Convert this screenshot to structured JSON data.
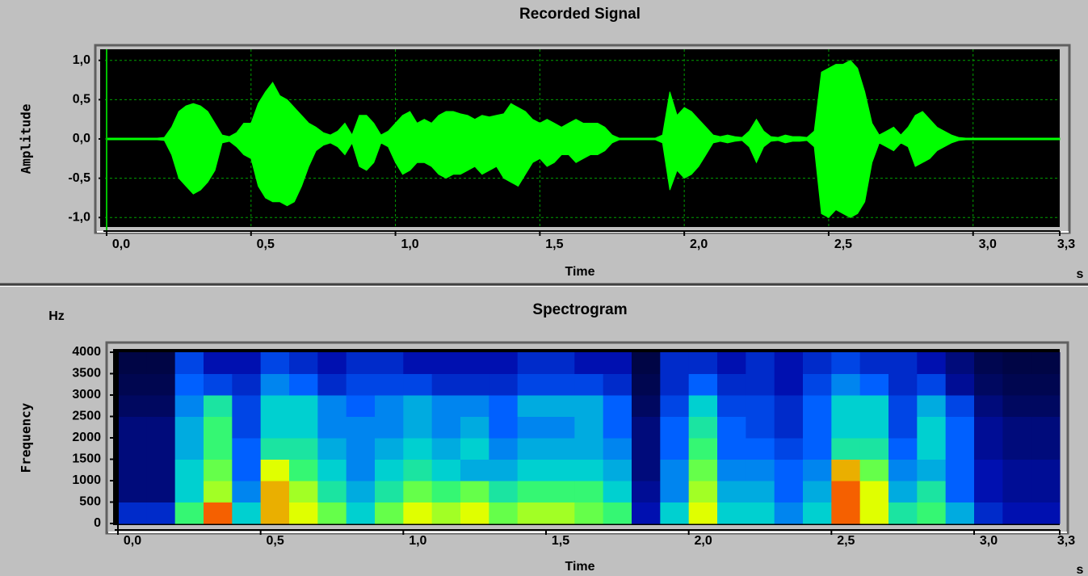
{
  "chart_data": [
    {
      "type": "waveform",
      "title": "Recorded Signal",
      "xlabel": "Time",
      "x_unit": "s",
      "ylabel": "Amplitude",
      "color": "#00ff00",
      "grid": true,
      "grid_color": "#00a000",
      "xlim": [
        0,
        3.3
      ],
      "ylim": [
        -1.1,
        1.1
      ],
      "xticks": [
        {
          "value": 0,
          "label": "0,0"
        },
        {
          "value": 0.5,
          "label": "0,5"
        },
        {
          "value": 1,
          "label": "1,0"
        },
        {
          "value": 1.5,
          "label": "1,5"
        },
        {
          "value": 2,
          "label": "2,0"
        },
        {
          "value": 2.5,
          "label": "2,5"
        },
        {
          "value": 3,
          "label": "3,0"
        },
        {
          "value": 3.3,
          "label": "3,3"
        }
      ],
      "yticks": [
        {
          "value": 1,
          "label": "1,0"
        },
        {
          "value": 0.5,
          "label": "0,5"
        },
        {
          "value": 0,
          "label": "0,0"
        },
        {
          "value": -0.5,
          "label": "-0,5"
        },
        {
          "value": -1,
          "label": "-1,0"
        }
      ],
      "x": [
        0,
        0.025,
        0.05,
        0.075,
        0.1,
        0.125,
        0.15,
        0.175,
        0.2,
        0.225,
        0.25,
        0.275,
        0.3,
        0.325,
        0.35,
        0.375,
        0.4,
        0.425,
        0.45,
        0.475,
        0.5,
        0.525,
        0.55,
        0.575,
        0.6,
        0.625,
        0.65,
        0.675,
        0.7,
        0.725,
        0.75,
        0.775,
        0.8,
        0.825,
        0.85,
        0.875,
        0.9,
        0.925,
        0.95,
        0.975,
        1,
        1.025,
        1.05,
        1.075,
        1.1,
        1.125,
        1.15,
        1.175,
        1.2,
        1.225,
        1.25,
        1.275,
        1.3,
        1.325,
        1.35,
        1.375,
        1.4,
        1.425,
        1.45,
        1.475,
        1.5,
        1.525,
        1.55,
        1.575,
        1.6,
        1.625,
        1.65,
        1.675,
        1.7,
        1.725,
        1.75,
        1.775,
        1.8,
        1.825,
        1.85,
        1.875,
        1.9,
        1.925,
        1.95,
        1.975,
        2,
        2.025,
        2.05,
        2.075,
        2.1,
        2.125,
        2.15,
        2.175,
        2.2,
        2.225,
        2.25,
        2.275,
        2.3,
        2.325,
        2.35,
        2.375,
        2.4,
        2.425,
        2.45,
        2.475,
        2.5,
        2.525,
        2.55,
        2.575,
        2.6,
        2.625,
        2.65,
        2.675,
        2.7,
        2.725,
        2.75,
        2.775,
        2.8,
        2.825,
        2.85,
        2.875,
        2.9,
        2.925,
        2.95,
        2.975,
        3,
        3.025,
        3.05,
        3.075,
        3.1,
        3.125,
        3.15,
        3.175,
        3.2,
        3.225,
        3.25,
        3.275,
        3.3
      ],
      "values": [
        0.01,
        0.01,
        0.01,
        0.01,
        0.01,
        0.01,
        0.01,
        0.01,
        0.02,
        0.15,
        0.35,
        0.42,
        0.45,
        0.42,
        0.35,
        0.2,
        0.05,
        0.03,
        0.08,
        0.2,
        0.2,
        0.45,
        0.6,
        0.72,
        0.55,
        0.5,
        0.4,
        0.3,
        0.2,
        0.15,
        0.08,
        0.05,
        0.1,
        0.2,
        0.05,
        0.3,
        0.3,
        0.2,
        0.05,
        0.1,
        0.2,
        0.3,
        0.35,
        0.2,
        0.25,
        0.2,
        0.3,
        0.35,
        0.35,
        0.32,
        0.3,
        0.25,
        0.3,
        0.28,
        0.3,
        0.32,
        0.45,
        0.4,
        0.35,
        0.25,
        0.2,
        0.25,
        0.2,
        0.15,
        0.2,
        0.25,
        0.2,
        0.2,
        0.2,
        0.15,
        0.05,
        0.01,
        0.01,
        0.01,
        0.01,
        0.01,
        0.01,
        0.05,
        0.6,
        0.3,
        0.4,
        0.35,
        0.25,
        0.15,
        0.05,
        0.03,
        0.05,
        0.03,
        0.02,
        0.1,
        0.25,
        0.1,
        0.03,
        0.02,
        0.05,
        0.03,
        0.03,
        0.02,
        0.1,
        0.85,
        0.9,
        0.95,
        0.95,
        1.0,
        0.9,
        0.6,
        0.2,
        0.05,
        0.1,
        0.15,
        0.05,
        0.15,
        0.3,
        0.35,
        0.25,
        0.15,
        0.1,
        0.05,
        0.02,
        0.01,
        0.01,
        0.01,
        0.01,
        0.01,
        0.01,
        0.01,
        0.01,
        0.01,
        0.01,
        0.01,
        0.01,
        0.01,
        0.01
      ],
      "lower_values": [
        -0.01,
        -0.01,
        -0.01,
        -0.01,
        -0.01,
        -0.01,
        -0.01,
        -0.01,
        -0.02,
        -0.2,
        -0.5,
        -0.6,
        -0.7,
        -0.65,
        -0.55,
        -0.4,
        -0.05,
        -0.03,
        -0.1,
        -0.2,
        -0.25,
        -0.6,
        -0.75,
        -0.8,
        -0.8,
        -0.85,
        -0.8,
        -0.6,
        -0.35,
        -0.15,
        -0.08,
        -0.05,
        -0.1,
        -0.2,
        -0.05,
        -0.35,
        -0.4,
        -0.3,
        -0.05,
        -0.1,
        -0.3,
        -0.45,
        -0.4,
        -0.3,
        -0.3,
        -0.35,
        -0.45,
        -0.5,
        -0.45,
        -0.45,
        -0.4,
        -0.35,
        -0.45,
        -0.4,
        -0.35,
        -0.5,
        -0.55,
        -0.6,
        -0.45,
        -0.3,
        -0.25,
        -0.35,
        -0.3,
        -0.2,
        -0.2,
        -0.3,
        -0.25,
        -0.2,
        -0.2,
        -0.15,
        -0.05,
        -0.01,
        -0.01,
        -0.01,
        -0.01,
        -0.01,
        -0.01,
        -0.05,
        -0.65,
        -0.4,
        -0.5,
        -0.45,
        -0.35,
        -0.2,
        -0.05,
        -0.03,
        -0.05,
        -0.03,
        -0.02,
        -0.1,
        -0.3,
        -0.1,
        -0.03,
        -0.02,
        -0.05,
        -0.03,
        -0.03,
        -0.02,
        -0.1,
        -0.95,
        -1.0,
        -0.9,
        -0.95,
        -1.0,
        -0.95,
        -0.8,
        -0.3,
        -0.05,
        -0.1,
        -0.15,
        -0.05,
        -0.1,
        -0.35,
        -0.3,
        -0.25,
        -0.15,
        -0.1,
        -0.05,
        -0.02,
        -0.01,
        -0.01,
        -0.01,
        -0.01,
        -0.01,
        -0.01,
        -0.01,
        -0.01,
        -0.01,
        -0.01,
        -0.01,
        -0.01,
        -0.01,
        -0.01
      ]
    },
    {
      "type": "heatmap",
      "title": "Spectrogram",
      "xlabel": "Time",
      "x_unit": "s",
      "ylabel": "Frequency",
      "y_unit": "Hz",
      "xlim": [
        0,
        3.3
      ],
      "ylim": [
        0,
        4000
      ],
      "xticks": [
        {
          "value": 0,
          "label": "0,0"
        },
        {
          "value": 0.5,
          "label": "0,5"
        },
        {
          "value": 1,
          "label": "1,0"
        },
        {
          "value": 1.5,
          "label": "1,5"
        },
        {
          "value": 2,
          "label": "2,0"
        },
        {
          "value": 2.5,
          "label": "2,5"
        },
        {
          "value": 3,
          "label": "3,0"
        },
        {
          "value": 3.3,
          "label": "3,3"
        }
      ],
      "yticks": [
        4000,
        3500,
        3000,
        2500,
        2000,
        1500,
        1000,
        500,
        0
      ],
      "colormap": [
        {
          "value": 0,
          "color": "#000010"
        },
        {
          "value": 0.3,
          "color": "#0010b0"
        },
        {
          "value": 0.45,
          "color": "#0060ff"
        },
        {
          "value": 0.6,
          "color": "#00d0d0"
        },
        {
          "value": 0.72,
          "color": "#40ff60"
        },
        {
          "value": 0.85,
          "color": "#e0ff00"
        },
        {
          "value": 1,
          "color": "#ff1000"
        }
      ],
      "xbins": [
        0,
        0.1,
        0.2,
        0.3,
        0.4,
        0.5,
        0.6,
        0.7,
        0.8,
        0.9,
        1,
        1.1,
        1.2,
        1.3,
        1.4,
        1.5,
        1.6,
        1.7,
        1.8,
        1.9,
        2,
        2.1,
        2.2,
        2.3,
        2.4,
        2.5,
        2.6,
        2.7,
        2.8,
        2.9,
        3,
        3.1,
        3.2,
        3.3
      ],
      "ybins": [
        0,
        500,
        1000,
        1500,
        2000,
        2500,
        3000,
        3500,
        4000
      ],
      "z": [
        [
          0.35,
          0.35,
          0.7,
          0.95,
          0.6,
          0.9,
          0.85,
          0.75,
          0.6,
          0.75,
          0.85,
          0.8,
          0.85,
          0.75,
          0.8,
          0.8,
          0.75,
          0.7,
          0.3,
          0.6,
          0.85,
          0.6,
          0.6,
          0.5,
          0.6,
          0.95,
          0.85,
          0.65,
          0.7,
          0.55,
          0.35,
          0.3,
          0.3
        ],
        [
          0.2,
          0.2,
          0.6,
          0.8,
          0.5,
          0.9,
          0.8,
          0.65,
          0.55,
          0.65,
          0.75,
          0.7,
          0.75,
          0.65,
          0.7,
          0.7,
          0.7,
          0.6,
          0.25,
          0.5,
          0.8,
          0.55,
          0.55,
          0.45,
          0.55,
          0.95,
          0.85,
          0.55,
          0.65,
          0.45,
          0.3,
          0.25,
          0.25
        ],
        [
          0.2,
          0.2,
          0.6,
          0.75,
          0.45,
          0.85,
          0.7,
          0.6,
          0.5,
          0.6,
          0.65,
          0.6,
          0.55,
          0.55,
          0.6,
          0.6,
          0.6,
          0.55,
          0.2,
          0.5,
          0.75,
          0.5,
          0.5,
          0.45,
          0.5,
          0.9,
          0.75,
          0.5,
          0.55,
          0.45,
          0.3,
          0.25,
          0.25
        ],
        [
          0.2,
          0.2,
          0.55,
          0.7,
          0.45,
          0.65,
          0.65,
          0.55,
          0.5,
          0.55,
          0.6,
          0.55,
          0.6,
          0.5,
          0.55,
          0.55,
          0.55,
          0.5,
          0.2,
          0.45,
          0.7,
          0.45,
          0.45,
          0.4,
          0.45,
          0.65,
          0.65,
          0.45,
          0.6,
          0.45,
          0.25,
          0.2,
          0.2
        ],
        [
          0.2,
          0.2,
          0.55,
          0.7,
          0.4,
          0.6,
          0.6,
          0.5,
          0.5,
          0.5,
          0.55,
          0.5,
          0.55,
          0.45,
          0.5,
          0.5,
          0.55,
          0.45,
          0.2,
          0.45,
          0.65,
          0.45,
          0.4,
          0.35,
          0.45,
          0.6,
          0.6,
          0.4,
          0.6,
          0.45,
          0.25,
          0.2,
          0.2
        ],
        [
          0.15,
          0.15,
          0.5,
          0.65,
          0.4,
          0.6,
          0.6,
          0.5,
          0.45,
          0.5,
          0.55,
          0.5,
          0.5,
          0.45,
          0.55,
          0.55,
          0.55,
          0.45,
          0.15,
          0.4,
          0.6,
          0.4,
          0.4,
          0.35,
          0.45,
          0.6,
          0.6,
          0.4,
          0.55,
          0.4,
          0.2,
          0.15,
          0.15
        ],
        [
          0.12,
          0.12,
          0.45,
          0.4,
          0.35,
          0.5,
          0.45,
          0.35,
          0.4,
          0.4,
          0.4,
          0.35,
          0.35,
          0.35,
          0.4,
          0.4,
          0.4,
          0.35,
          0.12,
          0.35,
          0.45,
          0.35,
          0.35,
          0.3,
          0.4,
          0.5,
          0.45,
          0.35,
          0.4,
          0.25,
          0.15,
          0.12,
          0.12
        ],
        [
          0.1,
          0.1,
          0.4,
          0.3,
          0.3,
          0.4,
          0.35,
          0.3,
          0.35,
          0.35,
          0.3,
          0.3,
          0.3,
          0.3,
          0.35,
          0.35,
          0.3,
          0.3,
          0.1,
          0.35,
          0.35,
          0.3,
          0.35,
          0.3,
          0.35,
          0.4,
          0.35,
          0.35,
          0.3,
          0.2,
          0.12,
          0.1,
          0.1
        ]
      ]
    }
  ]
}
